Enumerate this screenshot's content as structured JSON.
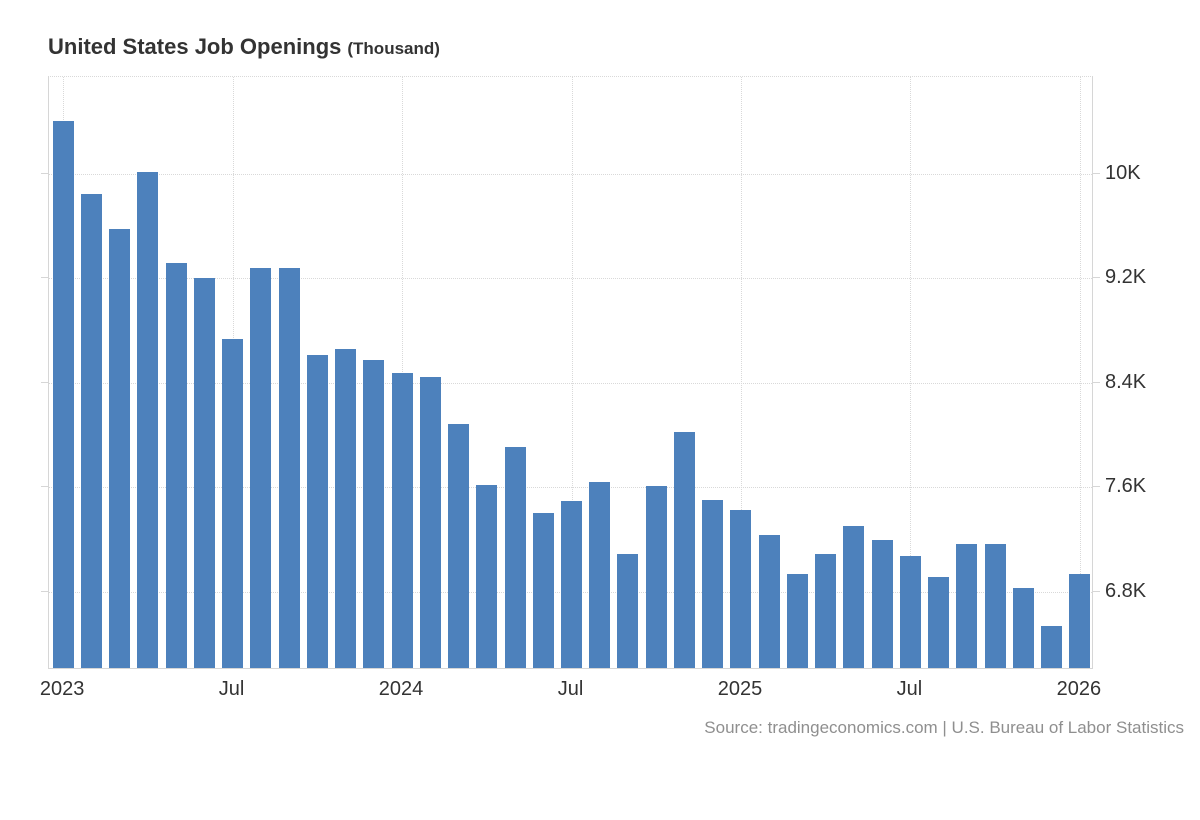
{
  "title": {
    "main": "United States Job Openings",
    "unit": "(Thousand)"
  },
  "source_text": "Source: tradingeconomics.com | U.S. Bureau of Labor Statistics",
  "colors": {
    "bar": "#4d81bc",
    "grid_dotted": "#d9d9d9",
    "axis_line": "#d6d6d6",
    "label_text": "#333333",
    "source_text": "#8f8f8f",
    "background": "#ffffff"
  },
  "chart_data": {
    "type": "bar",
    "title": "United States Job Openings (Thousand)",
    "x": [
      "Jan 2023",
      "Feb 2023",
      "Mar 2023",
      "Apr 2023",
      "May 2023",
      "Jun 2023",
      "Jul 2023",
      "Aug 2023",
      "Sep 2023",
      "Oct 2023",
      "Nov 2023",
      "Dec 2023",
      "Jan 2024",
      "Feb 2024",
      "Mar 2024",
      "Apr 2024",
      "May 2024",
      "Jun 2024",
      "Jul 2024",
      "Aug 2024",
      "Sep 2024",
      "Oct 2024",
      "Nov 2024",
      "Dec 2024",
      "Jan 2025",
      "Feb 2025",
      "Mar 2025",
      "Apr 2025",
      "May 2025",
      "Jun 2025",
      "Jul 2025",
      "Aug 2025",
      "Sep 2025",
      "Oct 2025",
      "Nov 2025",
      "Dec 2025",
      "Jan 2026"
    ],
    "values": [
      10385,
      9830,
      9560,
      10000,
      9300,
      9185,
      8720,
      9265,
      9265,
      8600,
      8640,
      8560,
      8455,
      8425,
      8070,
      7600,
      7890,
      7385,
      7480,
      7625,
      7075,
      7595,
      8010,
      7485,
      7410,
      7215,
      6920,
      7075,
      7290,
      7180,
      7060,
      6895,
      7150,
      7150,
      6810,
      6520,
      6920
    ],
    "ylabel": "Thousand",
    "xlabel": "",
    "ylim": [
      6200,
      10740
    ],
    "grid": "dotted",
    "y_axis": {
      "position": "right",
      "ticks": [
        10000,
        9200,
        8400,
        7600,
        6800
      ],
      "tick_labels": [
        "10K",
        "9.2K",
        "8.4K",
        "7.6K",
        "6.8K"
      ]
    },
    "x_axis": {
      "tick_indices": [
        0,
        6,
        12,
        18,
        24,
        30,
        36
      ],
      "tick_labels": [
        "2023",
        "Jul",
        "2024",
        "Jul",
        "2025",
        "Jul",
        "2026"
      ]
    },
    "legend": "off"
  }
}
